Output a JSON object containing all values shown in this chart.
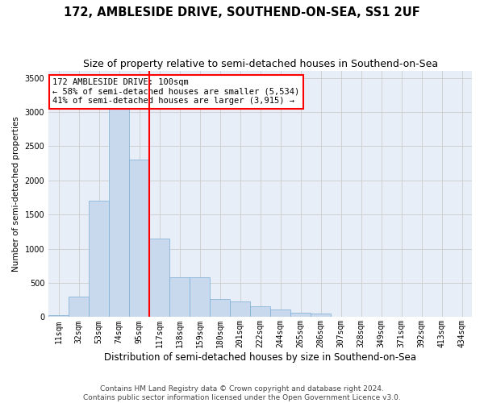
{
  "title": "172, AMBLESIDE DRIVE, SOUTHEND-ON-SEA, SS1 2UF",
  "subtitle": "Size of property relative to semi-detached houses in Southend-on-Sea",
  "xlabel": "Distribution of semi-detached houses by size in Southend-on-Sea",
  "ylabel": "Number of semi-detached properties",
  "categories": [
    "11sqm",
    "32sqm",
    "53sqm",
    "74sqm",
    "95sqm",
    "117sqm",
    "138sqm",
    "159sqm",
    "180sqm",
    "201sqm",
    "222sqm",
    "244sqm",
    "265sqm",
    "286sqm",
    "307sqm",
    "328sqm",
    "349sqm",
    "371sqm",
    "392sqm",
    "413sqm",
    "434sqm"
  ],
  "values": [
    25,
    300,
    1700,
    3050,
    2300,
    1150,
    580,
    580,
    270,
    230,
    160,
    110,
    60,
    50,
    0,
    0,
    0,
    0,
    0,
    0,
    0
  ],
  "bar_color": "#c8d9ee",
  "bar_edgecolor": "#7aadd4",
  "vline_color": "red",
  "vline_index": 4.5,
  "annotation_text": "172 AMBLESIDE DRIVE: 100sqm\n← 58% of semi-detached houses are smaller (5,534)\n41% of semi-detached houses are larger (3,915) →",
  "annotation_box_facecolor": "white",
  "annotation_box_edgecolor": "red",
  "ylim": [
    0,
    3600
  ],
  "yticks": [
    0,
    500,
    1000,
    1500,
    2000,
    2500,
    3000,
    3500
  ],
  "grid_color": "#cccccc",
  "bg_color": "#e8eef8",
  "footer": "Contains HM Land Registry data © Crown copyright and database right 2024.\nContains public sector information licensed under the Open Government Licence v3.0.",
  "title_fontsize": 10.5,
  "subtitle_fontsize": 9,
  "xlabel_fontsize": 8.5,
  "ylabel_fontsize": 7.5,
  "tick_fontsize": 7,
  "annotation_fontsize": 7.5,
  "footer_fontsize": 6.5
}
